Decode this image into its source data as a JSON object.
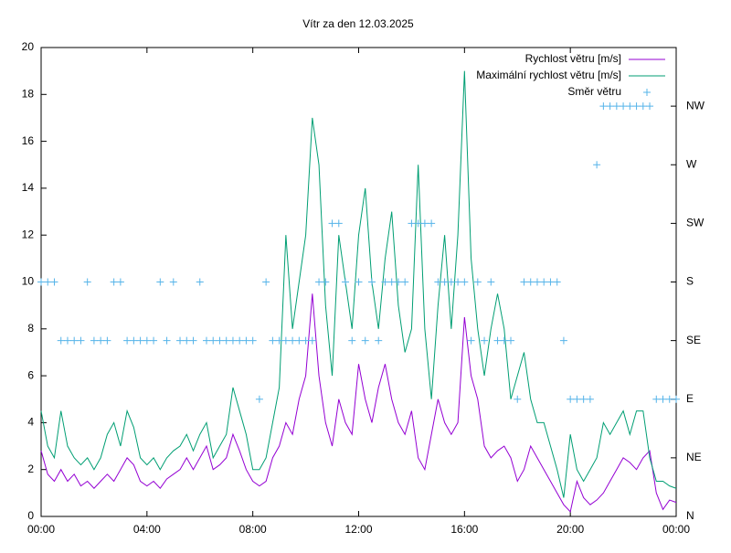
{
  "chart_data": {
    "type": "line",
    "title": "Vítr za den 12.03.2025",
    "x": [
      0,
      0.25,
      0.5,
      0.75,
      1,
      1.25,
      1.5,
      1.75,
      2,
      2.25,
      2.5,
      2.75,
      3,
      3.25,
      3.5,
      3.75,
      4,
      4.25,
      4.5,
      4.75,
      5,
      5.25,
      5.5,
      5.75,
      6,
      6.25,
      6.5,
      6.75,
      7,
      7.25,
      7.5,
      7.75,
      8,
      8.25,
      8.5,
      8.75,
      9,
      9.25,
      9.5,
      9.75,
      10,
      10.25,
      10.5,
      10.75,
      11,
      11.25,
      11.5,
      11.75,
      12,
      12.25,
      12.5,
      12.75,
      13,
      13.25,
      13.5,
      13.75,
      14,
      14.25,
      14.5,
      14.75,
      15,
      15.25,
      15.5,
      15.75,
      16,
      16.25,
      16.5,
      16.75,
      17,
      17.25,
      17.5,
      17.75,
      18,
      18.25,
      18.5,
      18.75,
      19,
      19.25,
      19.5,
      19.75,
      20,
      20.25,
      20.5,
      20.75,
      21,
      21.25,
      21.5,
      21.75,
      22,
      22.25,
      22.5,
      22.75,
      23,
      23.25,
      23.5,
      23.75,
      24
    ],
    "series": [
      {
        "name": "Rychlost větru [m/s]",
        "color": "#9400d3",
        "values": [
          2.8,
          1.8,
          1.5,
          2.0,
          1.5,
          1.8,
          1.3,
          1.5,
          1.2,
          1.5,
          1.8,
          1.5,
          2.0,
          2.5,
          2.2,
          1.5,
          1.3,
          1.5,
          1.2,
          1.6,
          1.8,
          2.0,
          2.5,
          2.0,
          2.5,
          3.0,
          2.0,
          2.2,
          2.5,
          3.5,
          2.8,
          2.0,
          1.5,
          1.3,
          1.5,
          2.5,
          3.0,
          4.0,
          3.5,
          5.0,
          6.0,
          9.5,
          6.0,
          4.0,
          3.0,
          5.0,
          4.0,
          3.5,
          6.5,
          5.0,
          4.0,
          5.5,
          6.5,
          5.0,
          4.0,
          3.5,
          4.5,
          2.5,
          2.0,
          3.5,
          5.0,
          4.0,
          3.5,
          4.0,
          8.5,
          6.0,
          5.0,
          3.0,
          2.5,
          2.8,
          3.0,
          2.5,
          1.5,
          2.0,
          3.0,
          2.5,
          2.0,
          1.5,
          1.0,
          0.5,
          0.2,
          1.5,
          0.8,
          0.5,
          0.7,
          1.0,
          1.5,
          2.0,
          2.5,
          2.3,
          2.0,
          2.5,
          2.8,
          1.0,
          0.3,
          0.7,
          0.6
        ]
      },
      {
        "name": "Maximální rychlost větru [m/s]",
        "color": "#009e73",
        "values": [
          4.5,
          3.0,
          2.5,
          4.5,
          3.0,
          2.5,
          2.2,
          2.5,
          2.0,
          2.5,
          3.5,
          4.0,
          3.0,
          4.5,
          3.8,
          2.5,
          2.2,
          2.5,
          2.0,
          2.5,
          2.8,
          3.0,
          3.5,
          2.8,
          3.5,
          4.0,
          2.5,
          3.0,
          3.5,
          5.5,
          4.5,
          3.5,
          2.0,
          2.0,
          2.5,
          4.0,
          5.5,
          12.0,
          8.0,
          10.0,
          12.0,
          17.0,
          15.0,
          9.0,
          6.0,
          12.0,
          10.0,
          8.0,
          12.0,
          14.0,
          10.0,
          8.0,
          11.0,
          13.0,
          9.0,
          7.0,
          8.0,
          15.0,
          8.0,
          5.0,
          9.0,
          12.0,
          8.0,
          12.0,
          19.0,
          11.0,
          8.0,
          6.0,
          8.0,
          9.5,
          8.0,
          5.0,
          6.0,
          7.0,
          5.0,
          4.0,
          4.0,
          3.0,
          2.0,
          0.8,
          3.5,
          2.0,
          1.5,
          2.0,
          2.5,
          4.0,
          3.5,
          4.0,
          4.5,
          3.5,
          4.5,
          4.5,
          2.5,
          1.5,
          1.5,
          1.3,
          1.2
        ]
      },
      {
        "name": "Směr větru",
        "color": "#56b4e9",
        "axis": "y2",
        "marker": "+",
        "values": [
          4,
          4,
          4,
          3,
          3,
          3,
          3,
          4,
          3,
          3,
          3,
          4,
          4,
          3,
          3,
          3,
          3,
          3,
          4,
          3,
          4,
          3,
          3,
          3,
          4,
          3,
          3,
          3,
          3,
          3,
          3,
          3,
          3,
          2,
          4,
          3,
          3,
          3,
          3,
          3,
          3,
          3,
          4,
          4,
          5,
          5,
          4,
          3,
          4,
          3,
          4,
          3,
          4,
          4,
          4,
          4,
          5,
          5,
          5,
          5,
          4,
          4,
          4,
          4,
          4,
          3,
          4,
          3,
          4,
          3,
          3,
          3,
          2,
          4,
          4,
          4,
          4,
          4,
          4,
          3,
          2,
          2,
          2,
          2,
          6,
          7,
          7,
          7,
          7,
          7,
          7,
          7,
          7,
          2,
          2,
          2,
          2
        ]
      }
    ],
    "xlim": [
      0,
      24
    ],
    "xticks": [
      {
        "value": 0,
        "label": "00:00"
      },
      {
        "value": 4,
        "label": "04:00"
      },
      {
        "value": 8,
        "label": "08:00"
      },
      {
        "value": 12,
        "label": "12:00"
      },
      {
        "value": 16,
        "label": "16:00"
      },
      {
        "value": 20,
        "label": "20:00"
      },
      {
        "value": 24,
        "label": "00:00"
      }
    ],
    "ylim": [
      0,
      20
    ],
    "yticks": [
      0,
      2,
      4,
      6,
      8,
      10,
      12,
      14,
      16,
      18,
      20
    ],
    "y2lim": [
      0,
      8
    ],
    "y2ticks": [
      {
        "value": 0,
        "label": "N"
      },
      {
        "value": 1,
        "label": "NE"
      },
      {
        "value": 2,
        "label": "E"
      },
      {
        "value": 3,
        "label": "SE"
      },
      {
        "value": 4,
        "label": "S"
      },
      {
        "value": 5,
        "label": "SW"
      },
      {
        "value": 6,
        "label": "W"
      },
      {
        "value": 7,
        "label": "NW"
      }
    ],
    "legend": "top-right"
  }
}
